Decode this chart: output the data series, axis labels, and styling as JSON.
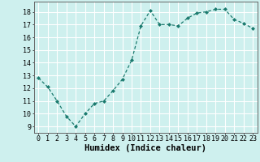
{
  "x": [
    0,
    1,
    2,
    3,
    4,
    5,
    6,
    7,
    8,
    9,
    10,
    11,
    12,
    13,
    14,
    15,
    16,
    17,
    18,
    19,
    20,
    21,
    22,
    23
  ],
  "y": [
    12.8,
    12.1,
    11.0,
    9.8,
    9.0,
    10.0,
    10.8,
    11.0,
    11.8,
    12.7,
    14.2,
    16.9,
    18.1,
    17.0,
    17.0,
    16.9,
    17.5,
    17.9,
    18.0,
    18.2,
    18.2,
    17.4,
    17.1,
    16.7
  ],
  "xlim": [
    -0.5,
    23.5
  ],
  "ylim": [
    8.5,
    18.8
  ],
  "yticks": [
    9,
    10,
    11,
    12,
    13,
    14,
    15,
    16,
    17,
    18
  ],
  "xticks": [
    0,
    1,
    2,
    3,
    4,
    5,
    6,
    7,
    8,
    9,
    10,
    11,
    12,
    13,
    14,
    15,
    16,
    17,
    18,
    19,
    20,
    21,
    22,
    23
  ],
  "xlabel": "Humidex (Indice chaleur)",
  "line_color": "#1a7a6e",
  "marker_color": "#1a7a6e",
  "bg_color": "#cef0ee",
  "grid_color": "#ffffff",
  "xlabel_fontsize": 7.5,
  "tick_fontsize": 6.0
}
